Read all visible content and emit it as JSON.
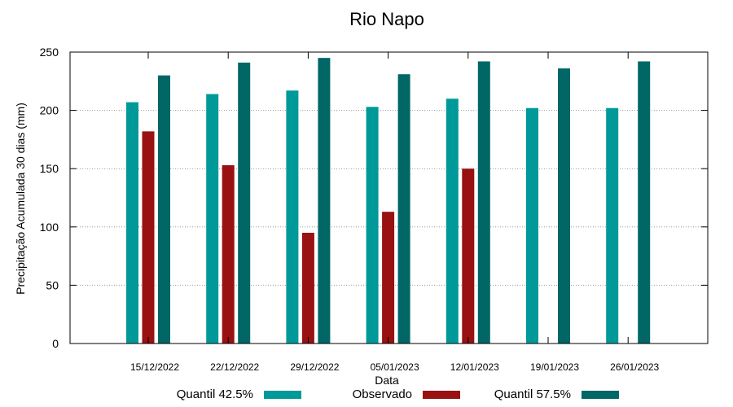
{
  "chart_data": {
    "type": "bar",
    "title": "Rio Napo",
    "xlabel": "Data",
    "ylabel": "Precipitação Acumulada 30 dias (mm)",
    "ylim": [
      0,
      250
    ],
    "yticks": [
      0,
      50,
      100,
      150,
      200,
      250
    ],
    "grid": true,
    "legend_position": "bottom",
    "categories": [
      "15/12/2022",
      "22/12/2022",
      "29/12/2022",
      "05/01/2023",
      "12/01/2023",
      "19/01/2023",
      "26/01/2023"
    ],
    "series": [
      {
        "name": "Quantil 42.5%",
        "color": "#009999",
        "values": [
          207,
          214,
          217,
          203,
          210,
          202,
          202
        ]
      },
      {
        "name": "Observado",
        "color": "#991111",
        "values": [
          182,
          153,
          95,
          113,
          150,
          null,
          null
        ]
      },
      {
        "name": "Quantil 57.5%",
        "color": "#006666",
        "values": [
          230,
          241,
          245,
          231,
          242,
          236,
          242
        ]
      }
    ]
  }
}
